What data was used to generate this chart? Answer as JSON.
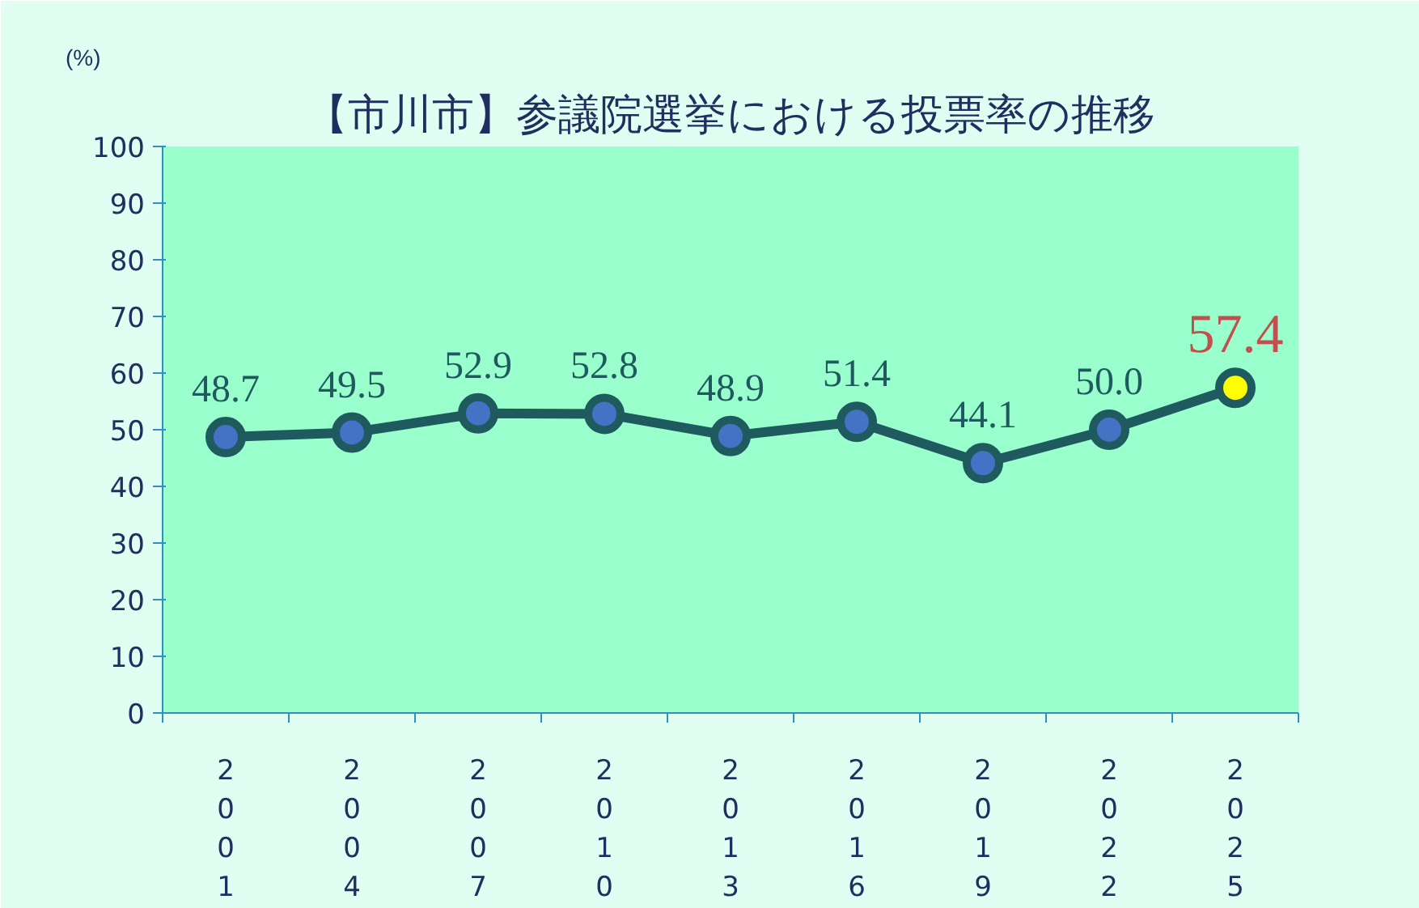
{
  "chart_data": {
    "type": "line",
    "title": "【市川市】参議院選挙における投票率の推移",
    "ylabel": "(%)",
    "categories": [
      "2001",
      "2004",
      "2007",
      "2010",
      "2013",
      "2016",
      "2019",
      "2022",
      "2025"
    ],
    "series": [
      {
        "color": "#1f5a5e",
        "values": [
          48.7,
          49.5,
          52.9,
          52.8,
          48.9,
          51.4,
          44.1,
          50.0,
          57.4
        ],
        "colors": [
          "#4472c4",
          "#4472c4",
          "#4472c4",
          "#4472c4",
          "#4472c4",
          "#4472c4",
          "#4472c4",
          "#4472c4",
          "#ffff00"
        ]
      }
    ],
    "value_labels": [
      "48.7",
      "49.5",
      "52.9",
      "52.8",
      "48.9",
      "51.4",
      "44.1",
      "50.0",
      "57.4"
    ],
    "ylim": [
      0,
      100
    ],
    "yticks": [
      0,
      10,
      20,
      30,
      40,
      50,
      60,
      70,
      80,
      90,
      100
    ],
    "grid": false,
    "marker": "circle",
    "line_style": "solid"
  }
}
